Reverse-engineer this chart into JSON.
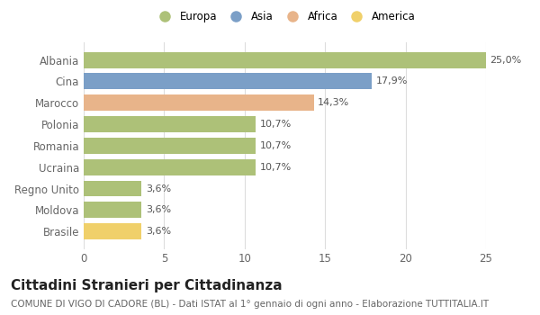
{
  "categories": [
    "Albania",
    "Cina",
    "Marocco",
    "Polonia",
    "Romania",
    "Ucraina",
    "Regno Unito",
    "Moldova",
    "Brasile"
  ],
  "values": [
    25.0,
    17.9,
    14.3,
    10.7,
    10.7,
    10.7,
    3.6,
    3.6,
    3.6
  ],
  "labels": [
    "25,0%",
    "17,9%",
    "14,3%",
    "10,7%",
    "10,7%",
    "10,7%",
    "3,6%",
    "3,6%",
    "3,6%"
  ],
  "colors": [
    "#adc178",
    "#7b9fc7",
    "#e8b48a",
    "#adc178",
    "#adc178",
    "#adc178",
    "#adc178",
    "#adc178",
    "#f0d06a"
  ],
  "legend_labels": [
    "Europa",
    "Asia",
    "Africa",
    "America"
  ],
  "legend_colors": [
    "#adc178",
    "#7b9fc7",
    "#e8b48a",
    "#f0d06a"
  ],
  "xlim": [
    0,
    25
  ],
  "xticks": [
    0,
    5,
    10,
    15,
    20,
    25
  ],
  "title": "Cittadini Stranieri per Cittadinanza",
  "subtitle": "COMUNE DI VIGO DI CADORE (BL) - Dati ISTAT al 1° gennaio di ogni anno - Elaborazione TUTTITALIA.IT",
  "bg_color": "#ffffff",
  "grid_color": "#dddddd",
  "bar_height": 0.75,
  "label_fontsize": 8,
  "tick_fontsize": 8.5,
  "title_fontsize": 11,
  "subtitle_fontsize": 7.5,
  "label_color": "#555555",
  "tick_color": "#666666"
}
